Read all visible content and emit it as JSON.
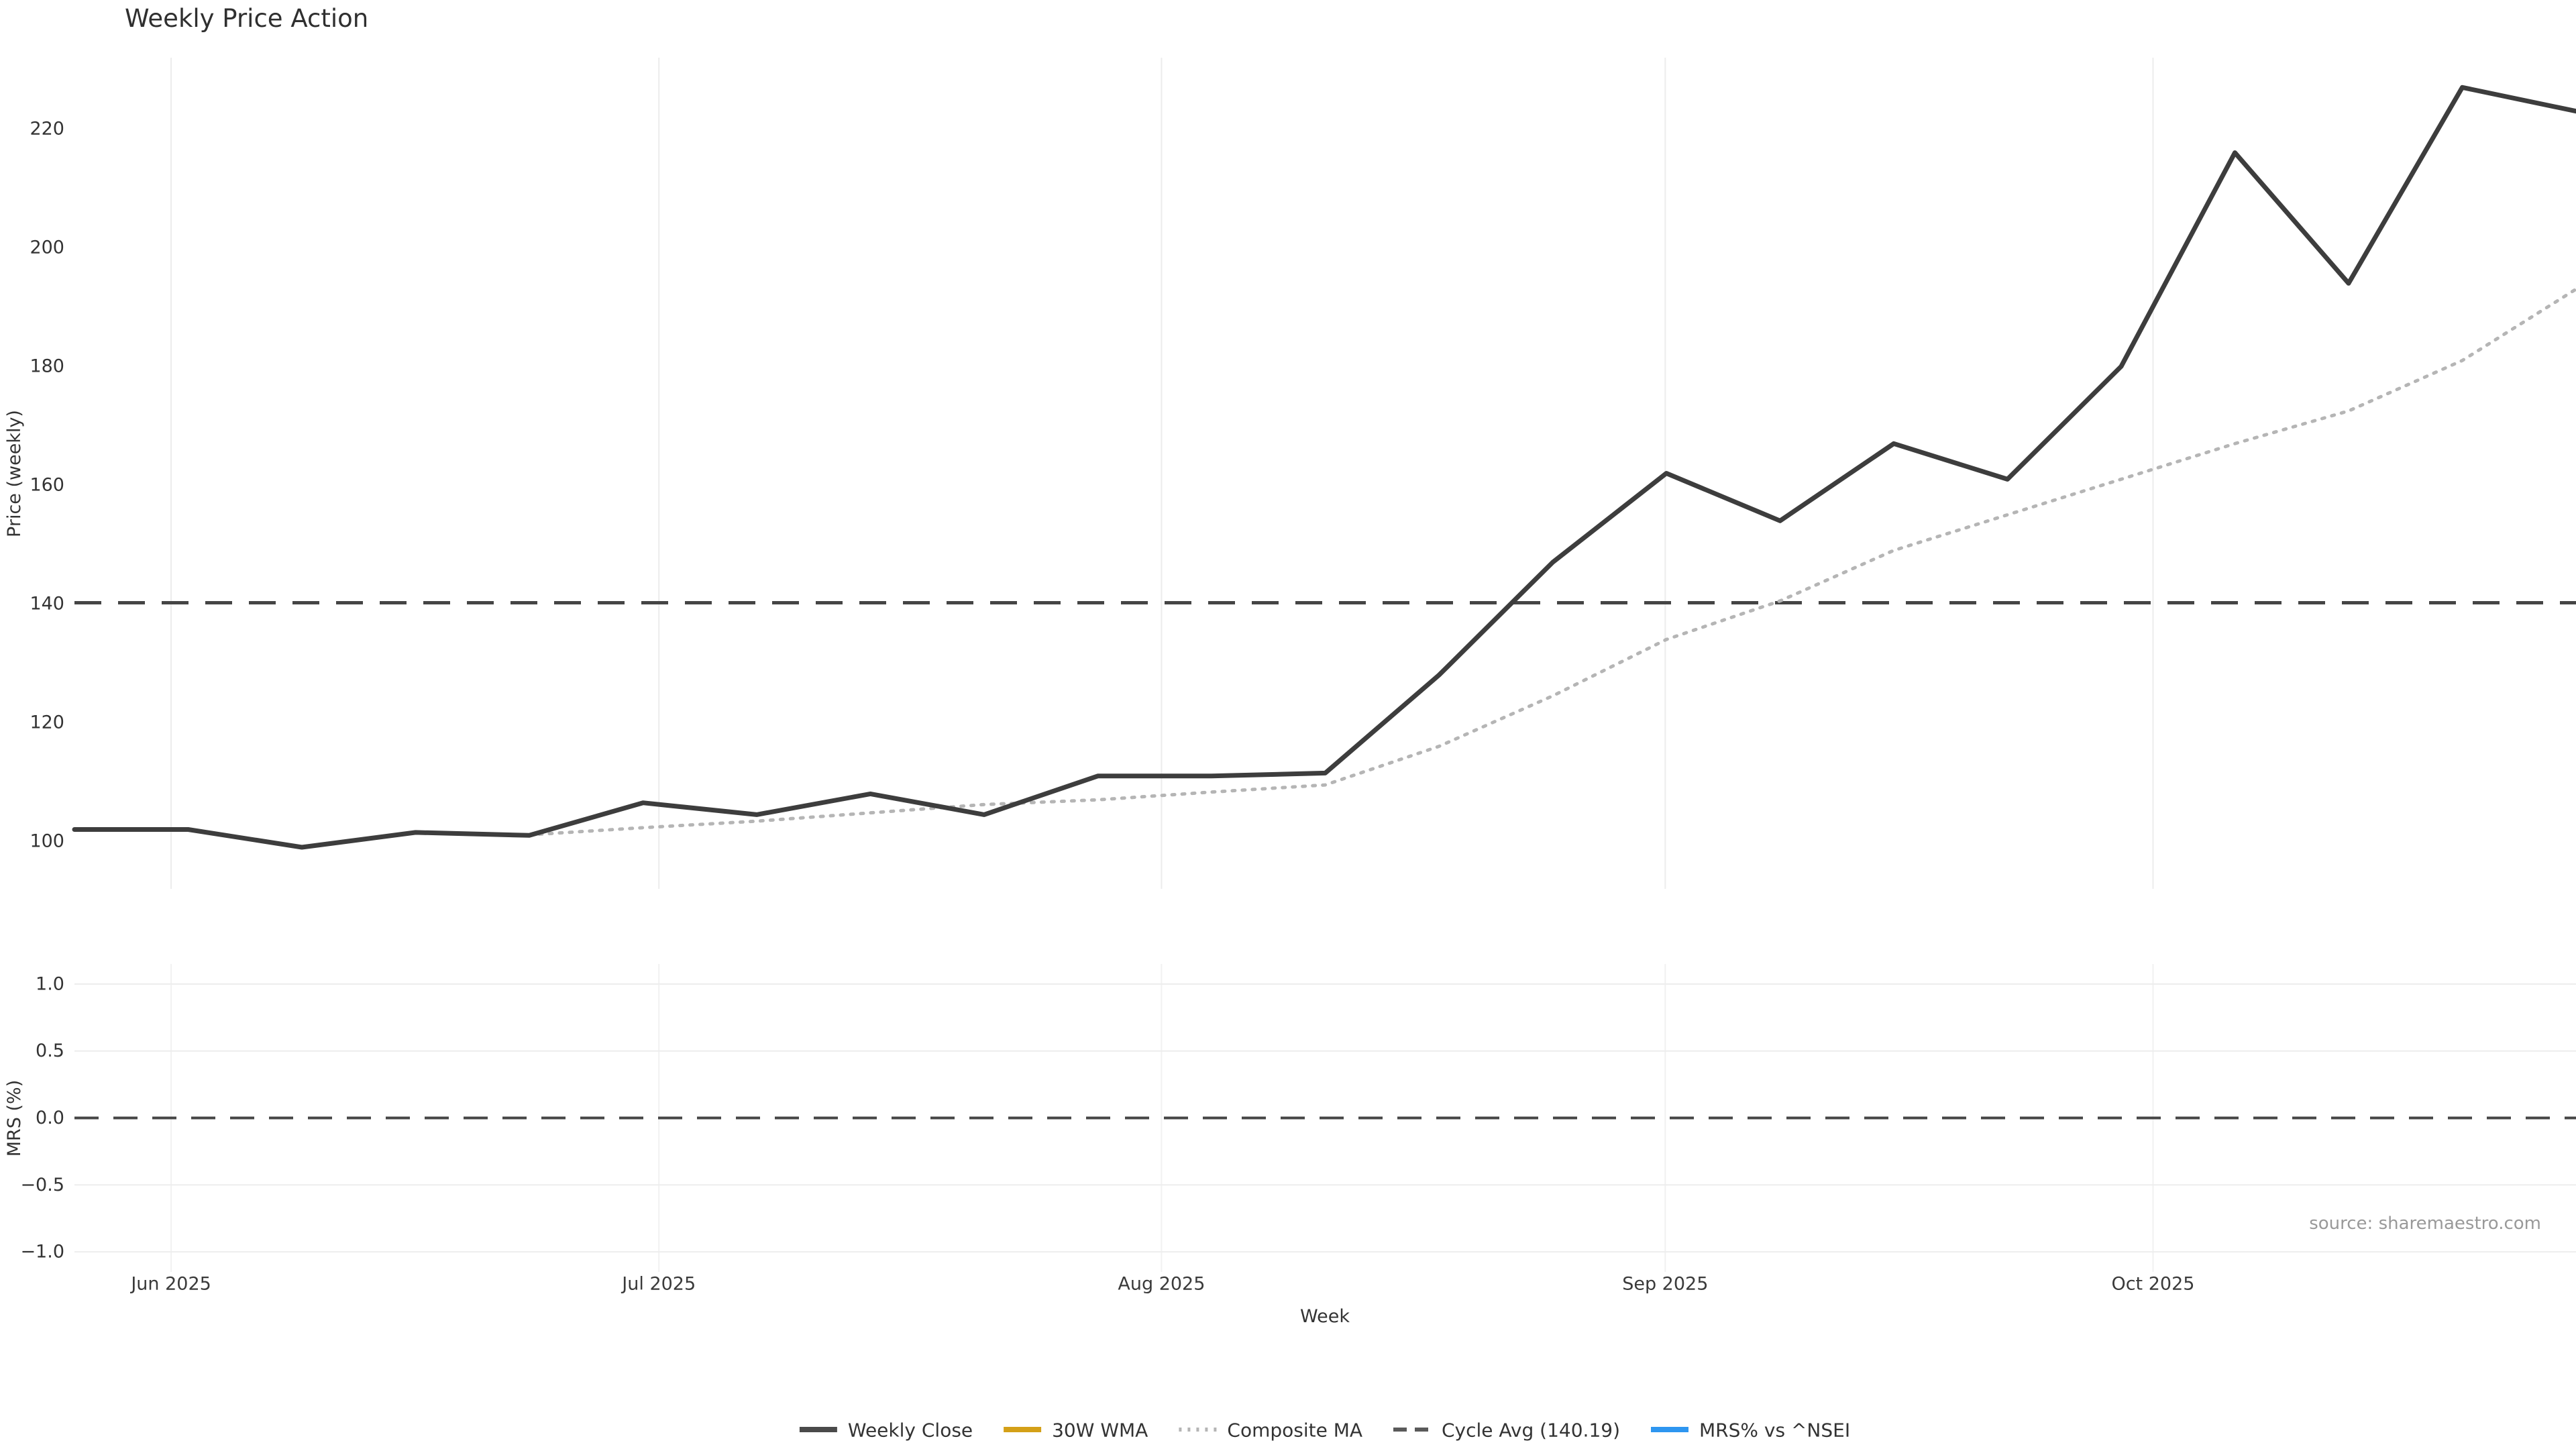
{
  "title": "Weekly Price Action",
  "source": "source: sharemaestro.com",
  "chart_data": [
    {
      "type": "line",
      "panel": "price",
      "title": "Weekly Price Action",
      "xlabel": "Week",
      "ylabel": "Price (weekly)",
      "ylim": [
        92,
        232
      ],
      "yticks": [
        100,
        120,
        140,
        160,
        180,
        200,
        220
      ],
      "ytick_labels": [
        "100",
        "120",
        "140",
        "160",
        "180",
        "200",
        "220"
      ],
      "x_tick_labels": [
        "Jun 2025",
        "Jul 2025",
        "Aug 2025",
        "Sep 2025",
        "Oct 2025"
      ],
      "x_tick_week_positions": [
        0.85,
        5.14,
        9.56,
        13.99,
        18.28
      ],
      "grid": "vertical-only",
      "legend_position": "bottom-center",
      "series": [
        {
          "name": "Weekly Close",
          "color": "#3d3d3d",
          "style": "solid",
          "values": [
            102,
            102,
            99,
            101.5,
            101,
            106.5,
            104.5,
            108,
            104.5,
            111,
            111,
            111.5,
            128,
            147,
            162,
            154,
            167,
            161,
            180,
            216,
            194,
            227,
            223
          ]
        },
        {
          "name": "Composite MA",
          "color": "#b5b5b5",
          "style": "dotted",
          "values": [
            null,
            null,
            null,
            null,
            101.1,
            102.3,
            103.4,
            104.8,
            106.2,
            107,
            108.3,
            109.5,
            116,
            124.5,
            134,
            140.5,
            149,
            155,
            161,
            167,
            172.5,
            181,
            193
          ]
        },
        {
          "name": "30W WMA",
          "color": "#d4a017",
          "style": "solid",
          "values": []
        }
      ],
      "hline": {
        "label": "Cycle Avg (140.19)",
        "value": 140.19,
        "style": "dashed",
        "color": "#454545"
      }
    },
    {
      "type": "line",
      "panel": "mrs",
      "ylabel": "MRS (%)",
      "ylim": [
        -1.15,
        1.15
      ],
      "yticks": [
        1.0,
        0.5,
        0.0,
        -0.5,
        -1.0
      ],
      "ytick_labels": [
        "1.0",
        "0.5",
        "0.0",
        "−0.5",
        "−1.0"
      ],
      "grid": "horizontal-and-vertical",
      "series": [
        {
          "name": "MRS% vs ^NSEI",
          "color": "#2e96f0",
          "style": "solid",
          "values": []
        }
      ],
      "hline": {
        "value": 0.0,
        "style": "dashed",
        "color": "#454545"
      }
    }
  ],
  "legend": {
    "items": [
      {
        "label": "Weekly Close",
        "color": "#4a4a4a",
        "style": "solid"
      },
      {
        "label": "30W WMA",
        "color": "#d4a017",
        "style": "solid"
      },
      {
        "label": "Composite MA",
        "color": "#b5b5b5",
        "style": "dotted"
      },
      {
        "label": "Cycle Avg (140.19)",
        "color": "#5a5a5a",
        "style": "dashed"
      },
      {
        "label": "MRS% vs ^NSEI",
        "color": "#2e96f0",
        "style": "solid"
      }
    ]
  }
}
